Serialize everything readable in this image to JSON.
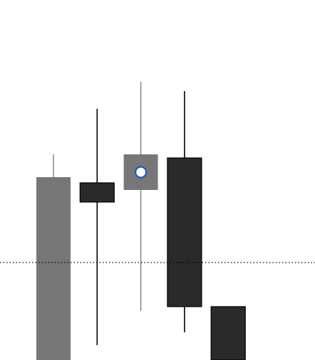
{
  "chart_data": {
    "type": "candlestick",
    "ylim": [
      0,
      506
    ],
    "open": [
      0,
      249,
      239,
      284,
      75
    ],
    "close": [
      257,
      222,
      289,
      75,
      0
    ],
    "high": [
      289,
      353,
      391,
      378,
      75
    ],
    "low": [
      0,
      21,
      69,
      39,
      0
    ],
    "up_color": "#777777",
    "down_color": "#2a2a2a",
    "reference_line": 137,
    "selected": 2,
    "marker_color": "#2255cc"
  }
}
